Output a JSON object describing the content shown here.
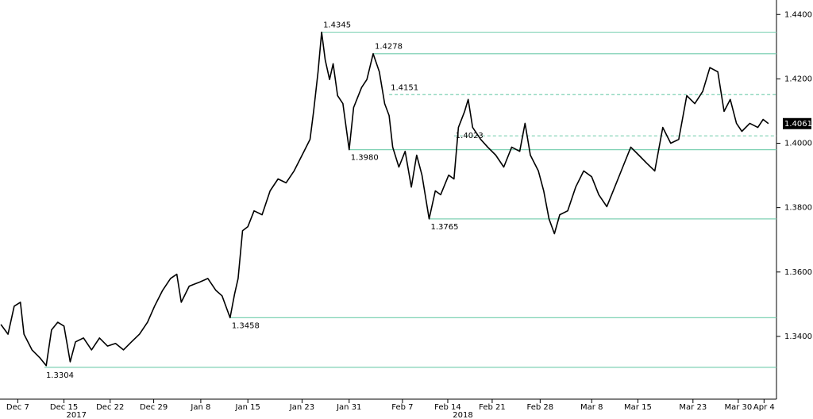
{
  "chart_data": {
    "type": "line",
    "xlim": [
      -2,
      85.4
    ],
    "ylim": [
      1.3205,
      1.4445
    ],
    "yticks": [
      {
        "value": 1.34,
        "label": "1.3400"
      },
      {
        "value": 1.36,
        "label": "1.3600"
      },
      {
        "value": 1.38,
        "label": "1.3800"
      },
      {
        "value": 1.4,
        "label": "1.4000"
      },
      {
        "value": 1.42,
        "label": "1.4200"
      },
      {
        "value": 1.44,
        "label": "1.4400"
      }
    ],
    "xticks": [
      {
        "value": 0,
        "label": "Dec 7"
      },
      {
        "value": 5.2,
        "label": "Dec 15"
      },
      {
        "value": 10.4,
        "label": "Dec 22"
      },
      {
        "value": 15.3,
        "label": "Dec 29"
      },
      {
        "value": 20.6,
        "label": "Jan 8"
      },
      {
        "value": 25.9,
        "label": "Jan 15"
      },
      {
        "value": 32,
        "label": "Jan 23"
      },
      {
        "value": 37.3,
        "label": "Jan 31"
      },
      {
        "value": 43.3,
        "label": "Feb 7"
      },
      {
        "value": 48.4,
        "label": "Feb 14"
      },
      {
        "value": 53.4,
        "label": "Feb 21"
      },
      {
        "value": 58.8,
        "label": "Feb 28"
      },
      {
        "value": 64.6,
        "label": "Mar 8"
      },
      {
        "value": 69.8,
        "label": "Mar 15"
      },
      {
        "value": 76,
        "label": "Mar 23"
      },
      {
        "value": 81.1,
        "label": "Mar 30"
      },
      {
        "value": 84,
        "label": "Apr 4"
      }
    ],
    "year_labels": [
      {
        "value": 6.6,
        "label": "2017"
      },
      {
        "value": 50.1,
        "label": "2018"
      }
    ],
    "series": [
      {
        "color": "#000000",
        "x": [
          -1.9,
          -1.1,
          -0.4,
          0.3,
          0.7,
          1.6,
          2.5,
          3.2,
          3.8,
          4.5,
          5.2,
          5.9,
          6.5,
          7.4,
          8.3,
          9.2,
          10.1,
          11.0,
          11.9,
          12.8,
          13.7,
          14.6,
          15.4,
          16.3,
          17.2,
          17.9,
          18.4,
          19.3,
          20.4,
          21.4,
          22.3,
          23.0,
          23.9,
          24.4,
          24.8,
          25.3,
          25.9,
          26.6,
          27.5,
          28.4,
          29.3,
          30.2,
          31.1,
          32.0,
          32.9,
          33.3,
          33.8,
          34.2,
          34.6,
          35.1,
          35.5,
          36.0,
          36.6,
          37.3,
          37.8,
          38.7,
          39.3,
          40.0,
          40.7,
          41.3,
          41.8,
          42.2,
          42.9,
          43.6,
          44.3,
          44.9,
          45.5,
          46.3,
          47.0,
          47.6,
          48.5,
          49.1,
          49.6,
          50.3,
          50.7,
          51.2,
          52.1,
          52.9,
          53.8,
          54.7,
          55.6,
          56.5,
          57.1,
          57.7,
          58.6,
          59.2,
          59.8,
          60.4,
          61.0,
          61.9,
          62.8,
          63.7,
          64.6,
          65.4,
          66.3,
          67.2,
          68.1,
          69.0,
          69.9,
          70.8,
          71.7,
          72.6,
          73.5,
          74.4,
          75.3,
          76.2,
          77.1,
          77.9,
          78.8,
          79.5,
          80.2,
          80.9,
          81.5,
          82.4,
          83.3,
          83.9,
          84.5
        ],
        "values": [
          1.3437,
          1.3407,
          1.3494,
          1.3506,
          1.3407,
          1.3358,
          1.3333,
          1.3309,
          1.342,
          1.3444,
          1.3432,
          1.3321,
          1.3383,
          1.3395,
          1.3358,
          1.3395,
          1.337,
          1.3378,
          1.3358,
          1.3383,
          1.3407,
          1.3444,
          1.3494,
          1.3543,
          1.358,
          1.3593,
          1.3506,
          1.3556,
          1.3568,
          1.358,
          1.3543,
          1.3526,
          1.3458,
          1.3531,
          1.358,
          1.3728,
          1.3741,
          1.379,
          1.3778,
          1.3852,
          1.3889,
          1.3877,
          1.3914,
          1.3963,
          1.4012,
          1.4099,
          1.4222,
          1.4345,
          1.4259,
          1.4198,
          1.4247,
          1.4148,
          1.4123,
          1.398,
          1.4111,
          1.4173,
          1.4198,
          1.4278,
          1.4222,
          1.4123,
          1.4086,
          1.3988,
          1.3926,
          1.3975,
          1.3864,
          1.3963,
          1.3901,
          1.3765,
          1.3852,
          1.384,
          1.3901,
          1.3889,
          1.4049,
          1.4099,
          1.4136,
          1.4049,
          1.4012,
          1.3988,
          1.3963,
          1.3926,
          1.3988,
          1.3975,
          1.4062,
          1.3963,
          1.3914,
          1.3852,
          1.3765,
          1.3719,
          1.3778,
          1.379,
          1.3864,
          1.3914,
          1.3896,
          1.384,
          1.3803,
          1.3864,
          1.3926,
          1.3988,
          1.3963,
          1.3938,
          1.3914,
          1.4049,
          1.4,
          1.4012,
          1.4148,
          1.4123,
          1.4161,
          1.4235,
          1.4222,
          1.4099,
          1.4136,
          1.4062,
          1.4037,
          1.4062,
          1.4049,
          1.4074,
          1.4061
        ]
      }
    ],
    "levels_color": "#7fd1b4",
    "levels": [
      {
        "value": 1.4345,
        "label": "1.4345",
        "x": 34.2,
        "style": "solid",
        "side": "above"
      },
      {
        "value": 1.4278,
        "label": "1.4278",
        "x": 40.0,
        "style": "solid",
        "side": "above"
      },
      {
        "value": 1.4151,
        "label": "1.4151",
        "x": 41.8,
        "style": "dashed",
        "side": "above"
      },
      {
        "value": 1.4023,
        "label": "1.4023",
        "x": 49.1,
        "style": "dashed",
        "side": "on"
      },
      {
        "value": 1.398,
        "label": "1.3980",
        "x": 37.3,
        "style": "solid",
        "side": "below"
      },
      {
        "value": 1.3765,
        "label": "1.3765",
        "x": 46.3,
        "style": "solid",
        "side": "below"
      },
      {
        "value": 1.3458,
        "label": "1.3458",
        "x": 23.9,
        "style": "solid",
        "side": "below"
      },
      {
        "value": 1.3304,
        "label": "1.3304",
        "x": 3.0,
        "style": "solid",
        "side": "below"
      }
    ],
    "last_price": 1.4061
  }
}
